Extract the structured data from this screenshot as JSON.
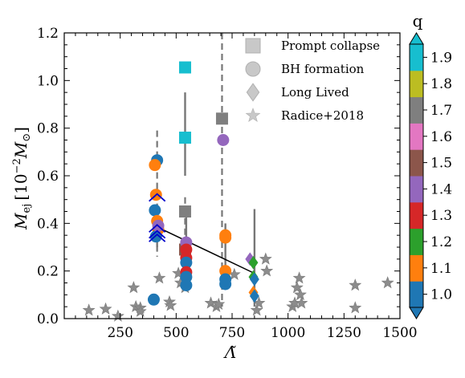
{
  "chart_data": {
    "type": "scatter",
    "xlabel": "Λ̃",
    "ylabel_prefix": "M",
    "ylabel_sub": "ej",
    "ylabel_unit_open": "[10",
    "ylabel_unit_exp": "−2",
    "ylabel_unit_sym": "M",
    "ylabel_unit_sub": "⊙",
    "ylabel_unit_close": "]",
    "xlim": [
      0,
      1500
    ],
    "ylim": [
      0.0,
      1.2
    ],
    "xticks": [
      250,
      500,
      750,
      1000,
      1250,
      1500
    ],
    "yticks": [
      0.0,
      0.2,
      0.4,
      0.6,
      0.8,
      1.0,
      1.2
    ],
    "grid": false,
    "legend_position": "top-right",
    "legend": [
      {
        "label": "Prompt collapse",
        "marker": "square"
      },
      {
        "label": "BH formation",
        "marker": "circle"
      },
      {
        "label": "Long Lived",
        "marker": "diamond"
      },
      {
        "label": "Radice+2018",
        "marker": "star"
      }
    ],
    "colorbar": {
      "title": "q",
      "min": 1.0,
      "max": 1.9,
      "ticks": [
        1.0,
        1.1,
        1.2,
        1.3,
        1.4,
        1.5,
        1.6,
        1.7,
        1.8,
        1.9
      ],
      "colors": [
        "#1f77b4",
        "#ff7f0e",
        "#2ca02c",
        "#d62728",
        "#9467bd",
        "#8c564b",
        "#e377c2",
        "#7f7f7f",
        "#bcbd22",
        "#17becf"
      ]
    },
    "error_bars": [
      {
        "x": 415,
        "y_low": 0.26,
        "y_high": 0.79,
        "style": "dashed"
      },
      {
        "x": 540,
        "y_low": 0.13,
        "y_high": 0.51,
        "style": "dashed"
      },
      {
        "x": 705,
        "y_low": 0.05,
        "y_high": 1.2,
        "style": "dashed"
      },
      {
        "x": 540,
        "y_low": 0.6,
        "y_high": 0.95,
        "style": "solid"
      },
      {
        "x": 545,
        "y_low": 0.12,
        "y_high": 0.45,
        "style": "solid"
      },
      {
        "x": 720,
        "y_low": 0.15,
        "y_high": 0.4,
        "style": "solid"
      },
      {
        "x": 850,
        "y_low": 0.05,
        "y_high": 0.46,
        "style": "solid"
      },
      {
        "x": 415,
        "y_low": 0.3,
        "y_high": 0.45,
        "style": "solid"
      }
    ],
    "fit_line": {
      "x": [
        415,
        850
      ],
      "y": [
        0.385,
        0.19
      ],
      "color": "#000000"
    },
    "chevrons": [
      {
        "x": 415,
        "y": 0.51,
        "color": "#0000cc"
      },
      {
        "x": 415,
        "y": 0.38,
        "color": "#0000cc"
      },
      {
        "x": 415,
        "y": 0.355,
        "color": "#0000cc"
      },
      {
        "x": 415,
        "y": 0.34,
        "color": "#0000cc"
      }
    ],
    "series": [
      {
        "name": "Prompt collapse",
        "marker": "square",
        "points": [
          {
            "x": 540,
            "y": 1.055,
            "q": 1.9
          },
          {
            "x": 540,
            "y": 0.76,
            "q": 1.9
          },
          {
            "x": 540,
            "y": 0.45,
            "q": 1.7
          },
          {
            "x": 705,
            "y": 0.84,
            "q": 1.7
          },
          {
            "x": 540,
            "y": 0.29,
            "q": 1.5
          }
        ]
      },
      {
        "name": "BH formation",
        "marker": "circle",
        "points": [
          {
            "x": 415,
            "y": 0.665,
            "q": 1.0
          },
          {
            "x": 405,
            "y": 0.645,
            "q": 1.1
          },
          {
            "x": 410,
            "y": 0.52,
            "q": 1.1
          },
          {
            "x": 405,
            "y": 0.455,
            "q": 1.0
          },
          {
            "x": 415,
            "y": 0.41,
            "q": 1.1
          },
          {
            "x": 420,
            "y": 0.375,
            "q": 1.1
          },
          {
            "x": 410,
            "y": 0.345,
            "q": 1.0
          },
          {
            "x": 420,
            "y": 0.39,
            "q": 1.4
          },
          {
            "x": 400,
            "y": 0.08,
            "q": 1.0
          },
          {
            "x": 710,
            "y": 0.75,
            "q": 1.4
          },
          {
            "x": 720,
            "y": 0.35,
            "q": 1.1
          },
          {
            "x": 720,
            "y": 0.34,
            "q": 1.1
          },
          {
            "x": 720,
            "y": 0.2,
            "q": 1.1
          },
          {
            "x": 720,
            "y": 0.165,
            "q": 1.0
          },
          {
            "x": 720,
            "y": 0.145,
            "q": 1.0
          },
          {
            "x": 545,
            "y": 0.32,
            "q": 1.4
          },
          {
            "x": 545,
            "y": 0.29,
            "q": 1.3
          },
          {
            "x": 545,
            "y": 0.255,
            "q": 1.3
          },
          {
            "x": 545,
            "y": 0.235,
            "q": 1.0
          },
          {
            "x": 545,
            "y": 0.195,
            "q": 1.3
          },
          {
            "x": 545,
            "y": 0.175,
            "q": 1.0
          },
          {
            "x": 545,
            "y": 0.14,
            "q": 1.0
          }
        ]
      },
      {
        "name": "Long Lived",
        "marker": "diamond",
        "points": [
          {
            "x": 830,
            "y": 0.25,
            "q": 1.4
          },
          {
            "x": 845,
            "y": 0.235,
            "q": 1.2
          },
          {
            "x": 845,
            "y": 0.175,
            "q": 1.2
          },
          {
            "x": 850,
            "y": 0.165,
            "q": 1.0
          },
          {
            "x": 845,
            "y": 0.11,
            "q": 1.1
          },
          {
            "x": 850,
            "y": 0.095,
            "q": 1.0
          }
        ]
      },
      {
        "name": "Radice+2018",
        "marker": "star",
        "points": [
          {
            "x": 110,
            "y": 0.035
          },
          {
            "x": 185,
            "y": 0.04
          },
          {
            "x": 240,
            "y": 0.01
          },
          {
            "x": 310,
            "y": 0.13
          },
          {
            "x": 320,
            "y": 0.05
          },
          {
            "x": 340,
            "y": 0.045
          },
          {
            "x": 340,
            "y": 0.03
          },
          {
            "x": 425,
            "y": 0.17
          },
          {
            "x": 470,
            "y": 0.07
          },
          {
            "x": 475,
            "y": 0.055
          },
          {
            "x": 510,
            "y": 0.19
          },
          {
            "x": 520,
            "y": 0.15
          },
          {
            "x": 540,
            "y": 0.13
          },
          {
            "x": 655,
            "y": 0.065
          },
          {
            "x": 680,
            "y": 0.05
          },
          {
            "x": 690,
            "y": 0.06
          },
          {
            "x": 760,
            "y": 0.185
          },
          {
            "x": 860,
            "y": 0.035
          },
          {
            "x": 870,
            "y": 0.065
          },
          {
            "x": 900,
            "y": 0.25
          },
          {
            "x": 905,
            "y": 0.2
          },
          {
            "x": 1020,
            "y": 0.05
          },
          {
            "x": 1030,
            "y": 0.065
          },
          {
            "x": 1040,
            "y": 0.13
          },
          {
            "x": 1050,
            "y": 0.17
          },
          {
            "x": 1055,
            "y": 0.1
          },
          {
            "x": 1060,
            "y": 0.065
          },
          {
            "x": 1300,
            "y": 0.045
          },
          {
            "x": 1300,
            "y": 0.14
          },
          {
            "x": 1445,
            "y": 0.15
          }
        ]
      }
    ]
  }
}
